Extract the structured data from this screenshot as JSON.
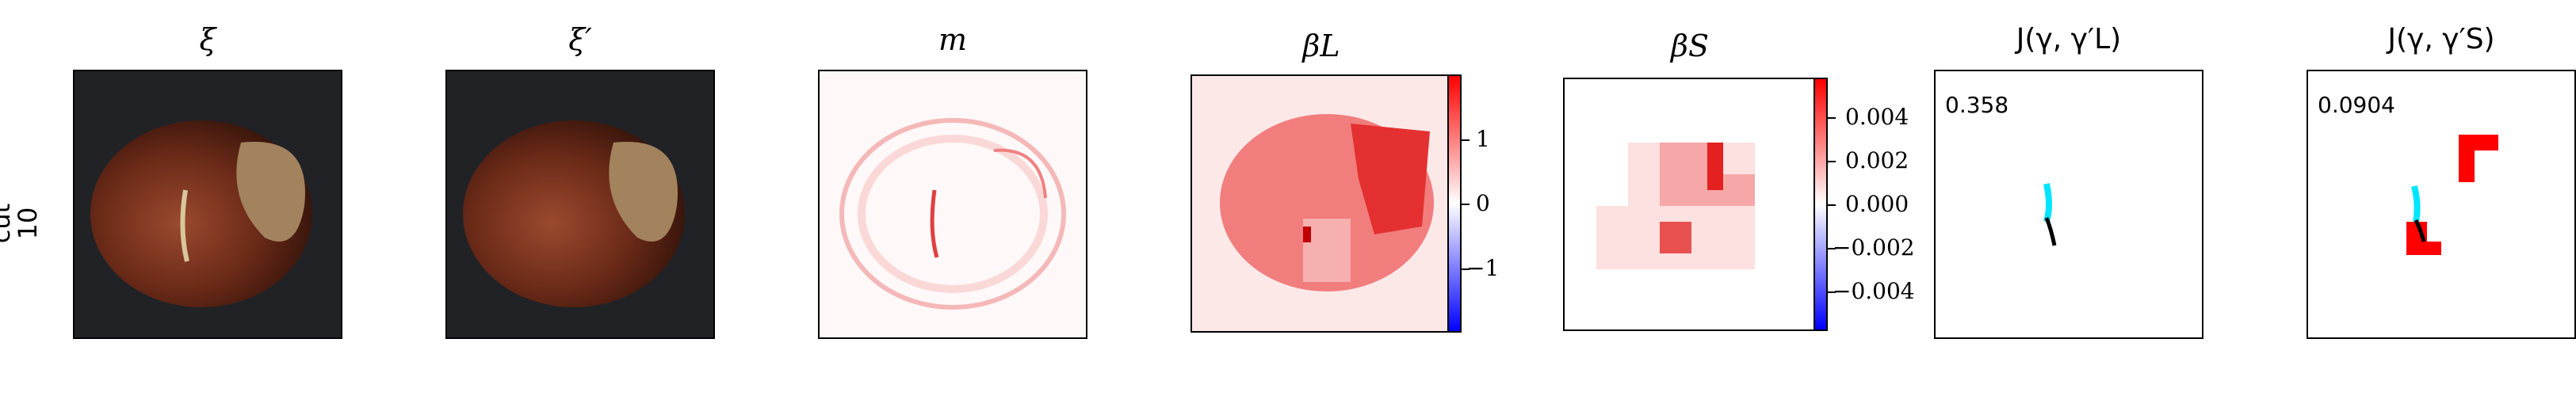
{
  "row_label": "cut\n10",
  "panels": [
    {
      "title": "ξ"
    },
    {
      "title": "ξ′"
    },
    {
      "title": "m"
    },
    {
      "title": "βL"
    },
    {
      "title": "βS"
    },
    {
      "title": "J(γ, γ′L)",
      "score": "0.358"
    },
    {
      "title": "J(γ, γ′S)",
      "score": "0.0904"
    }
  ],
  "colorbar_L": {
    "ticks": [
      "1",
      "0",
      "−1"
    ]
  },
  "colorbar_S": {
    "ticks": [
      "0.004",
      "0.002",
      "0.000",
      "−0.002",
      "−0.004"
    ]
  },
  "colors": {
    "red": "#ff0000",
    "blue": "#0000ff",
    "cyan": "#00e5ff",
    "black": "#000000"
  }
}
